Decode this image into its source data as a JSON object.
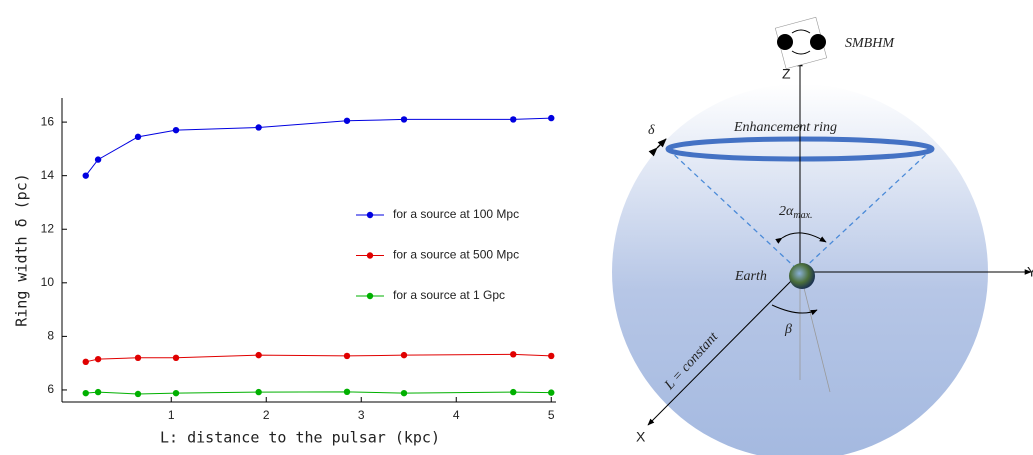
{
  "chart_data": {
    "type": "line",
    "xlabel": "L: distance to the pulsar (kpc)",
    "ylabel": "Ring width δ (pc)",
    "x": [
      0.1,
      0.23,
      0.65,
      1.05,
      1.92,
      2.85,
      3.45,
      4.6,
      5.0
    ],
    "series": [
      {
        "name": "for a source at 100 Mpc",
        "color": "#0000e0",
        "values": [
          14.0,
          14.6,
          15.45,
          15.7,
          15.8,
          16.05,
          16.1,
          16.1,
          16.15
        ]
      },
      {
        "name": "for a source at 500 Mpc",
        "color": "#e00000",
        "values": [
          7.05,
          7.15,
          7.2,
          7.2,
          7.3,
          7.27,
          7.3,
          7.33,
          7.27
        ]
      },
      {
        "name": "for a source at 1 Gpc",
        "color": "#00b000",
        "values": [
          5.88,
          5.92,
          5.85,
          5.88,
          5.92,
          5.93,
          5.88,
          5.92,
          5.9
        ]
      }
    ],
    "xlim": [
      -0.15,
      5.05
    ],
    "ylim": [
      5.55,
      16.9
    ],
    "xticks": [
      1,
      2,
      3,
      4,
      5
    ],
    "yticks": [
      6,
      8,
      10,
      12,
      14,
      16
    ],
    "grid": false
  },
  "diagram": {
    "source": "SMBHM",
    "z_axis": "Z",
    "y_axis": "Y",
    "x_axis": "X",
    "width": "δ",
    "ring": "Enhancement ring",
    "angle": "2α",
    "angle_sub": "max.",
    "earth": "Earth",
    "beta": "β",
    "distance": "L = constant"
  }
}
